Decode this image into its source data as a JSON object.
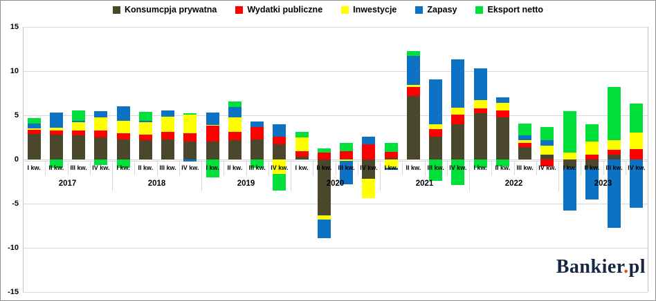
{
  "figure": {
    "background": "#ffffff",
    "border_color": "#8c8c8c"
  },
  "legend": {
    "position": "top",
    "items": [
      {
        "label": "Konsumcpja prywatna",
        "color": "#4b472c"
      },
      {
        "label": "Wydatki publiczne",
        "color": "#ff0000"
      },
      {
        "label": "Inwestycje",
        "color": "#ffff00"
      },
      {
        "label": "Zapasy",
        "color": "#0e72c4"
      },
      {
        "label": "Eksport netto",
        "color": "#00df3a"
      }
    ]
  },
  "chart_data": {
    "type": "bar",
    "stacked": true,
    "title": "",
    "xlabel": "",
    "ylabel": "",
    "years": [
      "2017",
      "2018",
      "2019",
      "2020",
      "2021",
      "2022",
      "2023"
    ],
    "quarter_labels": [
      "I kw.",
      "II kw.",
      "III kw.",
      "IV kw."
    ],
    "yticks": [
      15,
      10,
      5,
      0,
      -5,
      -10,
      -15
    ],
    "ylim": [
      -15,
      15
    ],
    "grid": true,
    "legend_position": "top",
    "gridline_color": "#d9d9d9",
    "series": [
      {
        "name": "Konsumcpja prywatna",
        "color": "#4b472c",
        "values": [
          2.9,
          2.8,
          2.7,
          2.5,
          2.3,
          2.2,
          2.25,
          2.0,
          2.0,
          2.15,
          2.25,
          1.7,
          0.3,
          -6.3,
          0.1,
          -2.2,
          0.15,
          7.15,
          2.6,
          4.0,
          5.25,
          4.8,
          1.4,
          0.55,
          -0.9,
          -1.05,
          0.55,
          0
        ]
      },
      {
        "name": "Wydatki publiczne",
        "color": "#ff0000",
        "values": [
          0.45,
          0.45,
          0.6,
          0.8,
          0.65,
          0.65,
          0.9,
          0.95,
          1.85,
          0.95,
          1.45,
          0.85,
          0.65,
          0.8,
          0.8,
          1.7,
          0.7,
          1.05,
          0.85,
          1.1,
          0.55,
          0.75,
          0.5,
          -0.8,
          0,
          0.55,
          0.55,
          1.2
        ]
      },
      {
        "name": "Inwestycje",
        "color": "#ffff00",
        "values": [
          0.15,
          0.35,
          0.95,
          1.5,
          1.45,
          1.35,
          1.7,
          2.1,
          0.05,
          1.65,
          0,
          -1.65,
          1.55,
          -0.5,
          -0.15,
          -2.2,
          -0.9,
          0.2,
          0.55,
          0.75,
          0.9,
          0.85,
          0.25,
          1.05,
          0.8,
          1.5,
          1.1,
          1.85
        ]
      },
      {
        "name": "Zapasy",
        "color": "#0e72c4",
        "values": [
          0.55,
          1.75,
          0.15,
          0.7,
          1.65,
          0.2,
          0.7,
          -0.2,
          1.4,
          1.2,
          0.6,
          1.4,
          0,
          -2.1,
          -2.65,
          0.85,
          -0.3,
          3.3,
          5.05,
          5.5,
          3.6,
          0.65,
          0.6,
          0.55,
          -4.9,
          -3.5,
          -7.7,
          -5.5
        ]
      },
      {
        "name": "Eksport netto",
        "color": "#00df3a",
        "values": [
          0.65,
          -0.9,
          1.15,
          -0.6,
          -0.95,
          1.0,
          0,
          0.15,
          -2.0,
          0.6,
          -0.95,
          -1.9,
          0.6,
          0.45,
          0.95,
          0,
          1.05,
          0.6,
          -2.45,
          -2.9,
          -0.9,
          -0.75,
          1.3,
          1.55,
          4.7,
          1.95,
          6.0,
          3.3
        ]
      }
    ]
  },
  "watermark": {
    "brand": "Bankier",
    "dot": ".",
    "suffix": "pl",
    "brand_color": "#152642",
    "dot_color": "#e8491f"
  }
}
